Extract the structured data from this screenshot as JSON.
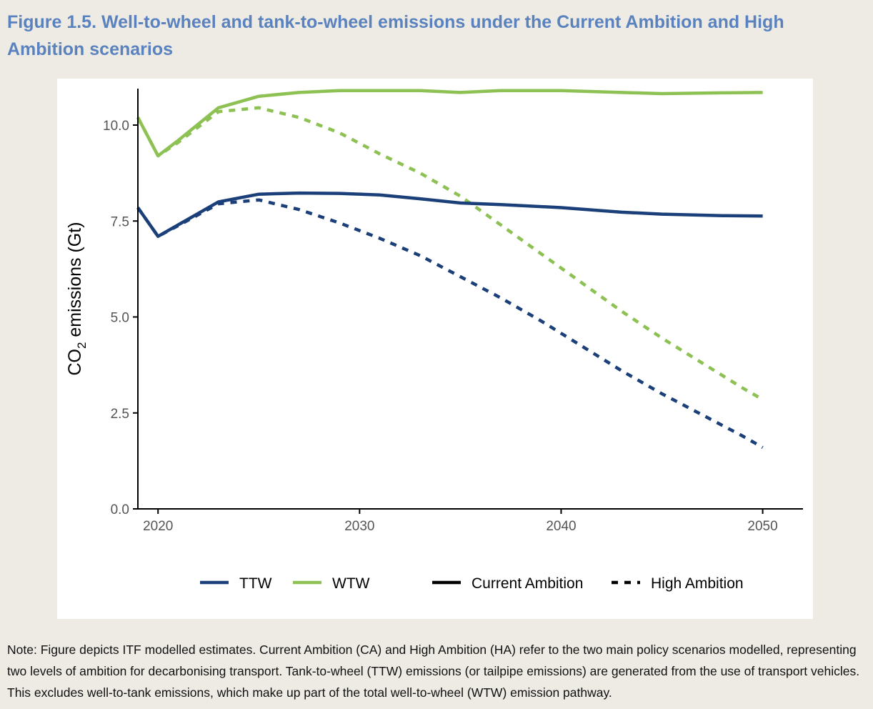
{
  "figure": {
    "title": "Figure 1.5. Well-to-wheel and tank-to-wheel emissions under the Current Ambition and High Ambition scenarios",
    "note": "Note: Figure depicts ITF modelled estimates. Current Ambition (CA) and High Ambition (HA) refer to the two main policy scenarios modelled, representing two levels of ambition for decarbonising transport. Tank-to-wheel (TTW) emissions (or tailpipe emissions) are generated from the use of transport vehicles. This excludes well-to-tank emissions, which make up part of the total well-to-wheel (WTW) emission pathway."
  },
  "chart_data": {
    "type": "line",
    "title": "",
    "xlabel": "",
    "ylabel": "CO2 emissions (Gt)",
    "ylabel_main": "CO",
    "ylabel_sub": "2",
    "ylabel_rest": " emissions (Gt)",
    "xlim": [
      2019,
      2052
    ],
    "ylim": [
      0,
      10.95
    ],
    "xticks": [
      2020,
      2030,
      2040,
      2050
    ],
    "xtick_labels": [
      "2020",
      "2030",
      "2040",
      "2050"
    ],
    "yticks": [
      0,
      2.5,
      5,
      7.5,
      10
    ],
    "ytick_labels": [
      "0.0",
      "2.5",
      "5.0",
      "7.5",
      "10.0"
    ],
    "colors": {
      "TTW": "#1b3f78",
      "WTW": "#8dc153"
    },
    "legend": {
      "position": "bottom",
      "items": [
        {
          "label": "TTW",
          "kind": "color",
          "key": "TTW"
        },
        {
          "label": "WTW",
          "kind": "color",
          "key": "WTW"
        },
        {
          "label": "Current Ambition",
          "kind": "linetype",
          "style": "solid"
        },
        {
          "label": "High Ambition",
          "kind": "linetype",
          "style": "dashed"
        }
      ]
    },
    "series": [
      {
        "name": "WTW Current Ambition",
        "color_key": "WTW",
        "style": "solid",
        "x": [
          2019,
          2020,
          2021,
          2023,
          2025,
          2027,
          2029,
          2031,
          2033,
          2035,
          2037,
          2040,
          2043,
          2045,
          2048,
          2050
        ],
        "y": [
          10.2,
          9.2,
          9.6,
          10.45,
          10.75,
          10.85,
          10.9,
          10.9,
          10.9,
          10.85,
          10.9,
          10.9,
          10.85,
          10.82,
          10.84,
          10.85
        ]
      },
      {
        "name": "WTW High Ambition",
        "color_key": "WTW",
        "style": "dashed",
        "x": [
          2019,
          2020,
          2021,
          2023,
          2025,
          2027,
          2029,
          2031,
          2033,
          2035,
          2037,
          2039,
          2041,
          2043,
          2045,
          2047,
          2049,
          2050
        ],
        "y": [
          10.2,
          9.2,
          9.55,
          10.35,
          10.45,
          10.2,
          9.8,
          9.25,
          8.75,
          8.15,
          7.4,
          6.65,
          5.9,
          5.15,
          4.45,
          3.8,
          3.15,
          2.85
        ]
      },
      {
        "name": "TTW Current Ambition",
        "color_key": "TTW",
        "style": "solid",
        "x": [
          2019,
          2020,
          2021,
          2023,
          2025,
          2027,
          2029,
          2031,
          2033,
          2035,
          2037,
          2040,
          2043,
          2045,
          2048,
          2050
        ],
        "y": [
          7.85,
          7.1,
          7.4,
          8.0,
          8.2,
          8.23,
          8.22,
          8.18,
          8.08,
          7.97,
          7.93,
          7.85,
          7.73,
          7.68,
          7.64,
          7.63
        ]
      },
      {
        "name": "TTW High Ambition",
        "color_key": "TTW",
        "style": "dashed",
        "x": [
          2019,
          2020,
          2021,
          2023,
          2025,
          2027,
          2029,
          2031,
          2033,
          2035,
          2037,
          2039,
          2041,
          2043,
          2045,
          2047,
          2049,
          2050
        ],
        "y": [
          7.85,
          7.1,
          7.38,
          7.95,
          8.05,
          7.8,
          7.45,
          7.05,
          6.6,
          6.05,
          5.5,
          4.9,
          4.25,
          3.6,
          3.0,
          2.45,
          1.9,
          1.6
        ]
      }
    ]
  }
}
